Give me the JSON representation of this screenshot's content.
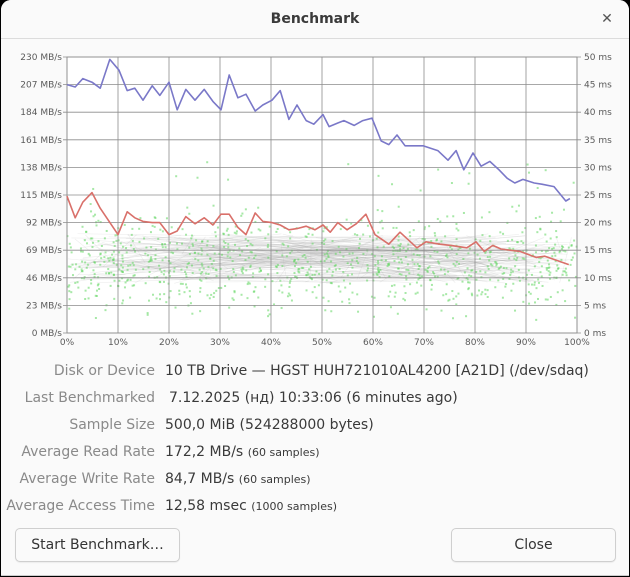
{
  "window": {
    "title": "Benchmark",
    "close_icon": "close-icon"
  },
  "info": {
    "rows": [
      {
        "label": "Disk or Device",
        "value": "10 TB Drive — HGST HUH721010AL4200 [A21D] (/dev/sdaq)",
        "note": ""
      },
      {
        "label": "Last Benchmarked",
        "value": "7.12.2025 (нд) 10:33:06 (6 minutes ago)",
        "note": ""
      },
      {
        "label": "Sample Size",
        "value": "500,0 MiB (524288000 bytes)",
        "note": ""
      },
      {
        "label": "Average Read Rate",
        "value": "172,2 MB/s",
        "note": "(60 samples)"
      },
      {
        "label": "Average Write Rate",
        "value": "84,7 MB/s",
        "note": "(60 samples)"
      },
      {
        "label": "Average Access Time",
        "value": "12,58 msec",
        "note": "(1000 samples)"
      }
    ]
  },
  "buttons": {
    "start": "Start Benchmark…",
    "close": "Close"
  },
  "chart_data": {
    "type": "line",
    "title": "",
    "xlabel": "",
    "ylabel": "MB/s",
    "y2label": "ms",
    "x_ticks": [
      "0%",
      "10%",
      "20%",
      "30%",
      "40%",
      "50%",
      "60%",
      "70%",
      "80%",
      "90%",
      "100%"
    ],
    "y_ticks": [
      "0 MB/s",
      "23 MB/s",
      "46 MB/s",
      "69 MB/s",
      "92 MB/s",
      "115 MB/s",
      "138 MB/s",
      "161 MB/s",
      "184 MB/s",
      "207 MB/s",
      "230 MB/s"
    ],
    "y2_ticks": [
      "0 ms",
      "5 ms",
      "10 ms",
      "15 ms",
      "20 ms",
      "25 ms",
      "30 ms",
      "35 ms",
      "40 ms",
      "45 ms",
      "50 ms"
    ],
    "ylim": [
      0,
      230
    ],
    "y2lim": [
      0,
      50
    ],
    "xlim": [
      0,
      100
    ],
    "grid": true,
    "colors": {
      "read": "#7a78c8",
      "write": "#d9706a",
      "access": "#5ed65e",
      "grid": "#8c8c8c"
    },
    "series": [
      {
        "name": "Read Rate",
        "x": [
          0,
          1.6,
          3.1,
          4.9,
          6.5,
          8.4,
          10.2,
          11.8,
          13.3,
          14.9,
          16.7,
          18.2,
          20.0,
          21.6,
          23.3,
          25.1,
          26.9,
          28.6,
          30.2,
          31.8,
          33.5,
          35.1,
          36.9,
          38.4,
          40.2,
          41.8,
          43.5,
          45.1,
          46.9,
          48.4,
          50.2,
          51.4,
          53.1,
          54.3,
          56.3,
          58.0,
          59.8,
          61.6,
          63.1,
          64.7,
          66.3,
          69.8,
          72.7,
          74.7,
          76.3,
          77.8,
          79.6,
          81.2,
          82.9,
          84.7,
          86.3,
          87.8,
          89.4,
          91.6,
          93.1,
          95.5,
          97.8,
          98.6
        ],
        "values": [
          207,
          205,
          212,
          209,
          204,
          228,
          219,
          202,
          204,
          194,
          206,
          198,
          209,
          186,
          203,
          194,
          203,
          193,
          186,
          215,
          196,
          199,
          185,
          190,
          194,
          202,
          178,
          190,
          177,
          174,
          182,
          172,
          175,
          177,
          173,
          177,
          179,
          160,
          157,
          165,
          156,
          156,
          152,
          144,
          152,
          136,
          150,
          139,
          143,
          136,
          129,
          125,
          128,
          125,
          124,
          122,
          110,
          112
        ]
      },
      {
        "name": "Write Rate",
        "x": [
          0,
          1.6,
          3.1,
          4.9,
          6.5,
          10.0,
          11.8,
          13.3,
          14.9,
          16.7,
          18.2,
          20.0,
          21.6,
          23.3,
          25.1,
          26.9,
          28.6,
          30.2,
          31.8,
          33.5,
          35.1,
          36.9,
          38.4,
          40.2,
          41.8,
          43.5,
          45.1,
          46.9,
          48.6,
          50.2,
          51.6,
          53.1,
          54.9,
          56.7,
          58.6,
          60.4,
          63.1,
          65.3,
          68.6,
          70.4,
          73.1,
          75.3,
          78.4,
          80.2,
          81.8,
          83.5,
          85.1,
          88.8,
          92.0,
          93.7,
          98.4
        ],
        "values": [
          114,
          96,
          109,
          117,
          104,
          82,
          101,
          96,
          93,
          92,
          92,
          82,
          85,
          97,
          91,
          96,
          90,
          99,
          99,
          88,
          82,
          100,
          93,
          92,
          90,
          86,
          87,
          89,
          86,
          90,
          84,
          92,
          86,
          91,
          99,
          82,
          74,
          84,
          71,
          76,
          74,
          73,
          71,
          76,
          68,
          73,
          70,
          68,
          63,
          64,
          57
        ]
      },
      {
        "name": "Access Time",
        "type": "scatter",
        "count": 1000,
        "mean_ms": 12.58,
        "range_ms": [
          2,
          31
        ]
      }
    ]
  }
}
